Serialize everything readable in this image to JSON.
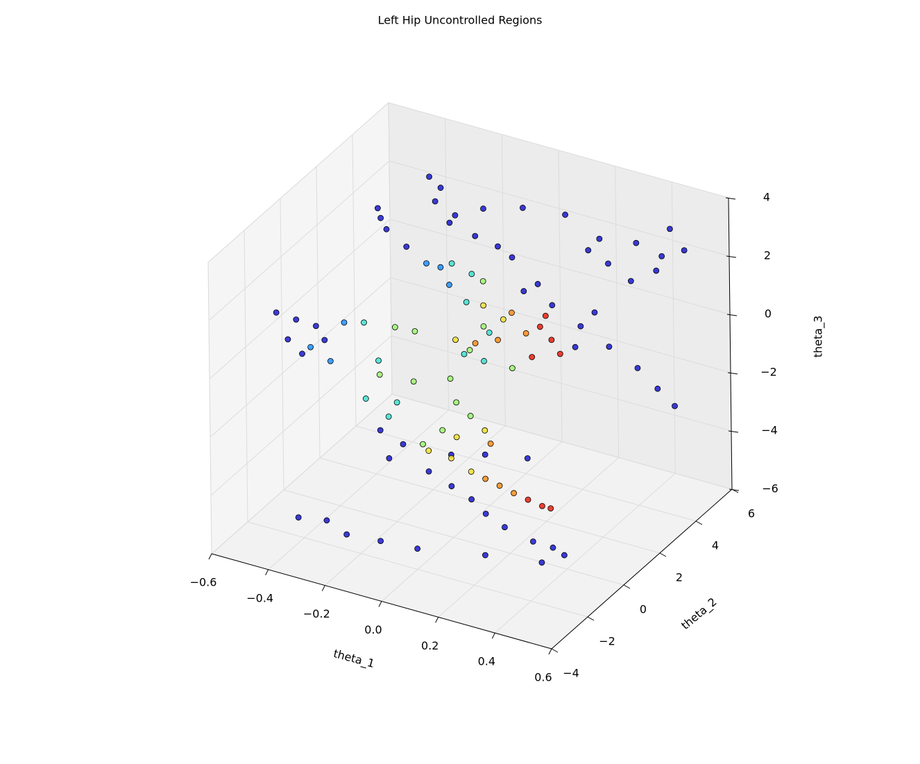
{
  "chart_data": {
    "type": "scatter3d",
    "title": "Left Hip Uncontrolled Regions",
    "xlabel": "theta_1",
    "ylabel": "theta_2",
    "zlabel": "theta_3",
    "xlim": [
      -0.6,
      0.6
    ],
    "ylim": [
      -4,
      6
    ],
    "zlim": [
      -6,
      4
    ],
    "xticks": [
      {
        "value": -0.6,
        "label": "−0.6"
      },
      {
        "value": -0.4,
        "label": "−0.4"
      },
      {
        "value": -0.2,
        "label": "−0.2"
      },
      {
        "value": 0,
        "label": "0.0"
      },
      0.2,
      0.4,
      0.6
    ],
    "yticks": [
      {
        "value": -4,
        "label": "−4"
      },
      {
        "value": -2,
        "label": "−2"
      },
      0,
      2,
      4,
      6
    ],
    "zticks": [
      {
        "value": -6,
        "label": "−6"
      },
      {
        "value": -4,
        "label": "−4"
      },
      {
        "value": -2,
        "label": "−2"
      },
      0,
      2,
      4
    ],
    "grid": true,
    "series": [
      {
        "color": "#1a1ad0",
        "x": [
          -0.33,
          -0.31,
          -0.26,
          -0.17,
          -0.04,
          -0.14,
          0.0,
          0.15,
          0.27,
          0.4,
          0.52,
          0.57,
          0.47,
          0.38,
          0.3,
          -0.29,
          -0.24,
          -0.09,
          0.23,
          0.49,
          -0.32,
          -0.29,
          -0.22,
          -0.31,
          -0.49,
          -0.42,
          -0.35,
          -0.45,
          -0.4,
          -0.32,
          0.0,
          0.1,
          0.2,
          0.3,
          0.4,
          0.47,
          0.53,
          0.05,
          0.18,
          0.25,
          -0.32,
          -0.24,
          -0.15,
          -0.07,
          0.0,
          0.05,
          -0.07,
          0.05,
          0.2,
          -0.29,
          0.31,
          0.41,
          0.48,
          0.52,
          0.44,
          0.24,
          0.0,
          -0.13,
          -0.25,
          -0.42,
          -0.32
        ],
        "y": [
          4,
          4,
          4,
          4,
          4,
          4,
          4,
          4,
          4,
          4,
          4,
          4,
          4,
          4,
          4,
          4,
          4,
          4,
          4,
          4,
          1,
          1,
          1,
          1,
          -2,
          -2,
          -2,
          -2,
          -2,
          -2,
          4,
          4,
          4,
          4,
          4,
          4,
          4,
          4,
          4,
          4,
          1,
          1,
          1,
          1,
          1,
          1,
          1,
          1,
          1,
          1,
          -2,
          -2,
          -2,
          -2,
          -2,
          -2,
          -2,
          -2,
          -2,
          -2,
          -2
        ],
        "z": [
          3.29,
          2.5,
          1.9,
          1.69,
          1.31,
          2.71,
          3.12,
          3.29,
          2.79,
          3.0,
          3.81,
          3.21,
          2.24,
          1.64,
          2.02,
          3.02,
          2.21,
          1.55,
          2.29,
          2.79,
          3.88,
          3.24,
          2.83,
          3.57,
          1.48,
          1.43,
          1.4,
          0.67,
          0.31,
          1.0,
          0.26,
          0.05,
          -0.4,
          -0.83,
          -1.29,
          -1.81,
          -2.24,
          0.64,
          -1.17,
          0.21,
          -3.74,
          -4.0,
          -4.69,
          -4.98,
          -5.24,
          -5.6,
          -3.9,
          -3.57,
          -3.29,
          -4.62,
          -3.71,
          -3.93,
          -3.95,
          -4.1,
          -4.57,
          -4.86,
          -5.29,
          -5.38,
          -5.48,
          -5.36,
          -5.19
        ]
      },
      {
        "color": "#1e90ff",
        "x": [
          -0.15,
          -0.07,
          -0.1,
          -0.25,
          -0.37,
          -0.3
        ],
        "y": [
          1,
          1,
          1,
          -2,
          -2,
          -2
        ],
        "z": [
          2.45,
          1.93,
          2.45,
          1.79,
          0.62,
          0.33
        ]
      },
      {
        "color": "#40e0d0",
        "x": [
          -0.01,
          -0.06,
          0.01,
          -0.18,
          -0.13,
          -0.02,
          0.05,
          0.07,
          -0.37,
          -0.29,
          -0.26
        ],
        "y": [
          1,
          1,
          1,
          -2,
          -2,
          1,
          1,
          1,
          1,
          1,
          1
        ],
        "z": [
          1.5,
          2.69,
          2.52,
          1.98,
          0.81,
          -0.31,
          -0.36,
          0.67,
          -2.79,
          -3.19,
          -2.62
        ]
      },
      {
        "color": "#9cf870",
        "x": [
          0.05,
          -0.07,
          0.0,
          0.05,
          0.15,
          0.0,
          -0.32,
          -0.2,
          -0.07,
          -0.05,
          0.0,
          -0.17,
          -0.1
        ],
        "y": [
          1,
          -2,
          -2,
          1,
          1,
          1,
          1,
          1,
          1,
          1,
          1,
          1,
          1
        ],
        "z": [
          2.38,
          2.12,
          2.17,
          0.83,
          -0.33,
          -0.12,
          -1.83,
          -1.74,
          -1.29,
          -2.05,
          -2.38,
          -3.81,
          -3.14
        ]
      },
      {
        "color": "#f0e030",
        "x": [
          0.12,
          0.05,
          -0.05,
          -0.15,
          -0.07,
          0.0,
          0.05,
          -0.05
        ],
        "y": [
          1,
          1,
          1,
          1,
          1,
          1,
          1,
          1
        ],
        "z": [
          1.26,
          1.55,
          0.1,
          -3.98,
          -4.02,
          -4.29,
          -2.74,
          -3.24
        ]
      },
      {
        "color": "#ff8c1a",
        "x": [
          0.15,
          0.2,
          0.1,
          0.02,
          0.05,
          0.1,
          0.15,
          0.07
        ],
        "y": [
          1,
          1,
          1,
          1,
          1,
          1,
          1,
          1
        ],
        "z": [
          1.57,
          1.0,
          0.5,
          0.17,
          -4.4,
          -4.5,
          -4.62,
          -3.14
        ]
      },
      {
        "color": "#e82010",
        "x": [
          0.25,
          0.29,
          0.32,
          0.22,
          0.27,
          0.2,
          0.25,
          0.28
        ],
        "y": [
          1,
          1,
          1,
          1,
          1,
          1,
          1,
          1
        ],
        "z": [
          1.36,
          1.02,
          0.62,
          0.24,
          1.79,
          -4.71,
          -4.79,
          -4.79
        ]
      }
    ]
  }
}
